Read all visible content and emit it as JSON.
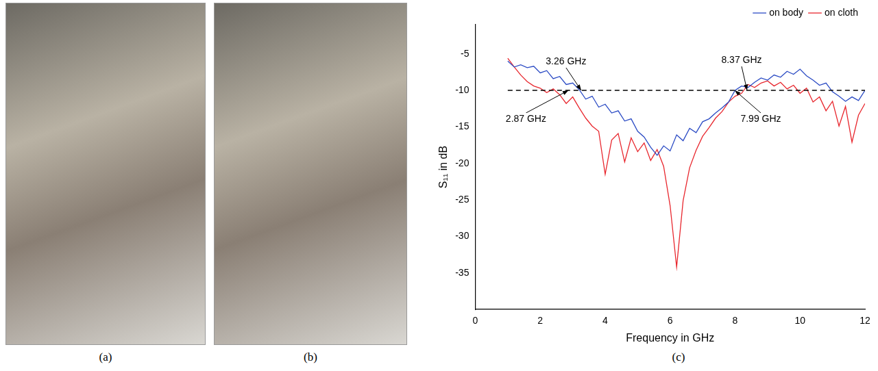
{
  "panels": [
    {
      "label": "(a)"
    },
    {
      "label": "(b)"
    }
  ],
  "chart_data": {
    "type": "line",
    "label": "(c)",
    "x_label": "Frequency in GHz",
    "y_label": "S₁₁ in dB",
    "xlim": [
      0,
      12
    ],
    "xticks": [
      0,
      2,
      4,
      6,
      8,
      10,
      12
    ],
    "ylim": [
      -40,
      -1
    ],
    "yticks": [
      -35,
      -30,
      -25,
      -20,
      -15,
      -10,
      -5
    ],
    "grid": false,
    "legend": "top-right",
    "threshold": -10,
    "x": [
      1.0,
      1.2,
      1.4,
      1.6,
      1.8,
      2.0,
      2.2,
      2.4,
      2.6,
      2.8,
      3.0,
      3.2,
      3.4,
      3.6,
      3.8,
      4.0,
      4.2,
      4.4,
      4.6,
      4.8,
      5.0,
      5.2,
      5.4,
      5.6,
      5.8,
      6.0,
      6.2,
      6.4,
      6.6,
      6.8,
      7.0,
      7.2,
      7.4,
      7.6,
      7.8,
      8.0,
      8.2,
      8.4,
      8.6,
      8.8,
      9.0,
      9.2,
      9.4,
      9.6,
      9.8,
      10.0,
      10.2,
      10.4,
      10.6,
      10.8,
      11.0,
      11.2,
      11.4,
      11.6,
      11.8,
      12.0
    ],
    "series": [
      {
        "name": "on body",
        "color": "#2b4bc4",
        "values": [
          -6.0,
          -6.8,
          -6.5,
          -6.9,
          -6.7,
          -7.6,
          -7.3,
          -8.4,
          -8.1,
          -9.2,
          -9.0,
          -9.9,
          -11.2,
          -10.8,
          -12.3,
          -11.9,
          -13.1,
          -12.8,
          -14.2,
          -13.9,
          -15.6,
          -16.4,
          -17.8,
          -18.9,
          -17.6,
          -18.3,
          -16.1,
          -16.9,
          -15.2,
          -15.8,
          -14.3,
          -13.9,
          -13.1,
          -12.4,
          -11.6,
          -10.0,
          -9.4,
          -9.6,
          -8.9,
          -8.3,
          -8.6,
          -7.9,
          -8.2,
          -7.4,
          -7.8,
          -7.1,
          -8.0,
          -8.6,
          -9.3,
          -9.0,
          -10.2,
          -10.8,
          -11.5,
          -10.9,
          -11.4,
          -10.0
        ]
      },
      {
        "name": "on cloth",
        "color": "#e8262d",
        "values": [
          -5.6,
          -6.8,
          -7.9,
          -8.8,
          -9.4,
          -9.7,
          -10.3,
          -9.8,
          -10.6,
          -11.8,
          -10.9,
          -12.4,
          -13.8,
          -14.9,
          -15.6,
          -21.5,
          -16.8,
          -15.9,
          -19.8,
          -16.5,
          -18.4,
          -17.2,
          -19.6,
          -18.1,
          -20.4,
          -25.8,
          -34.2,
          -25.1,
          -20.6,
          -18.2,
          -16.3,
          -15.1,
          -13.8,
          -12.9,
          -11.6,
          -10.8,
          -10.4,
          -9.2,
          -9.6,
          -9.0,
          -8.7,
          -9.4,
          -8.9,
          -9.8,
          -9.3,
          -10.4,
          -9.7,
          -11.6,
          -10.9,
          -12.8,
          -11.5,
          -14.9,
          -12.2,
          -17.1,
          -13.4,
          -11.8
        ]
      }
    ],
    "annotations": [
      {
        "text": "3.26 GHz",
        "x": 3.26,
        "y": -10
      },
      {
        "text": "8.37 GHz",
        "x": 8.37,
        "y": -10
      },
      {
        "text": "2.87 GHz",
        "x": 2.87,
        "y": -10
      },
      {
        "text": "7.99 GHz",
        "x": 7.99,
        "y": -10
      }
    ]
  }
}
